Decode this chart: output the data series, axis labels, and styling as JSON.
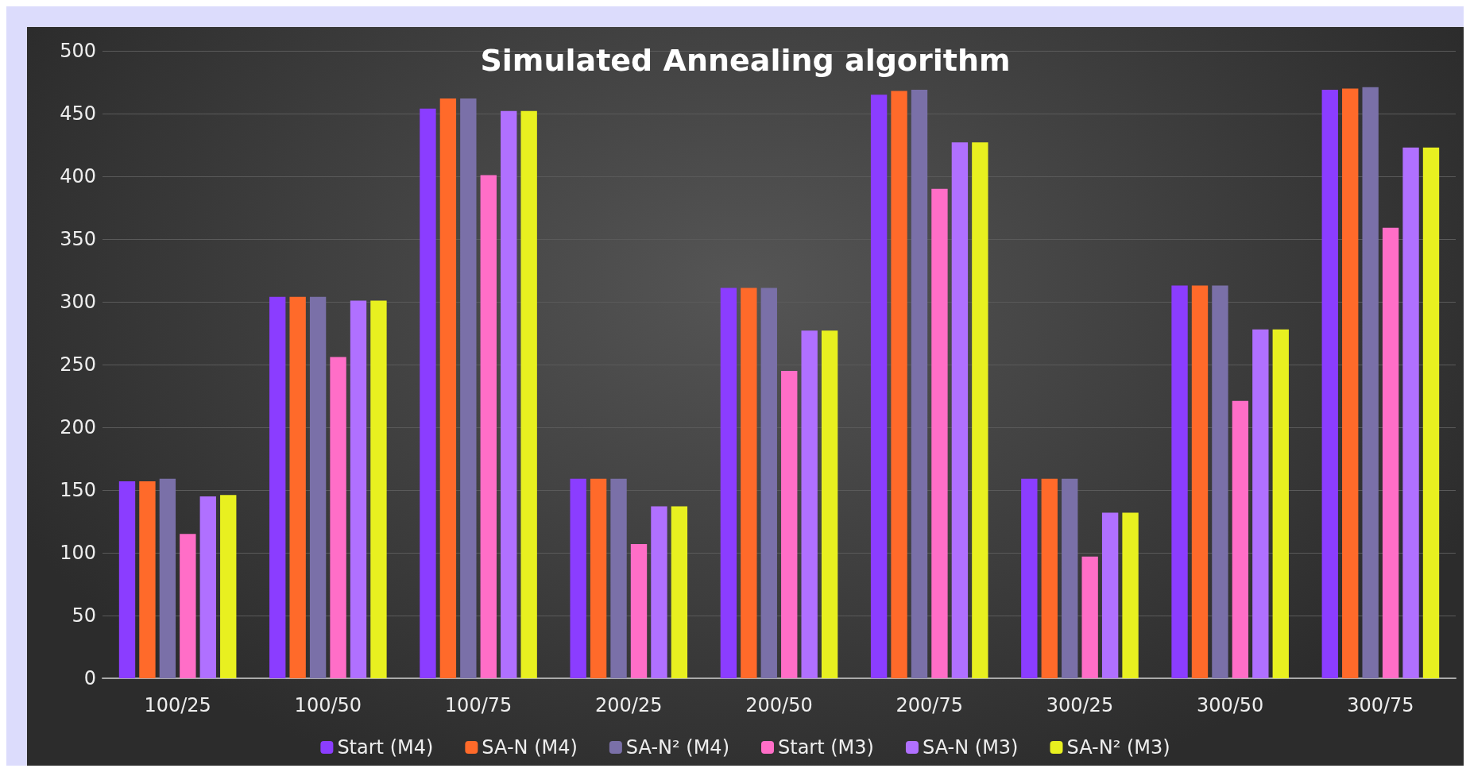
{
  "chart_data": {
    "type": "bar",
    "title": "Simulated Annealing algorithm",
    "categories": [
      "100/25",
      "100/50",
      "100/75",
      "200/25",
      "200/50",
      "200/75",
      "300/25",
      "300/50",
      "300/75"
    ],
    "series": [
      {
        "name": "Start (M4)",
        "color": "#8b3dff",
        "values": [
          157,
          304,
          454,
          159,
          311,
          465,
          159,
          313,
          469
        ]
      },
      {
        "name": "SA-N (M4)",
        "color": "#ff6a2a",
        "values": [
          157,
          304,
          462,
          159,
          311,
          468,
          159,
          313,
          470
        ]
      },
      {
        "name": "SA-N² (M4)",
        "color": "#7a70a8",
        "values": [
          159,
          304,
          462,
          159,
          311,
          469,
          159,
          313,
          471
        ]
      },
      {
        "name": "Start (M3)",
        "color": "#ff6ec7",
        "values": [
          115,
          256,
          401,
          107,
          245,
          390,
          97,
          221,
          359
        ]
      },
      {
        "name": "SA-N (M3)",
        "color": "#b070ff",
        "values": [
          145,
          301,
          452,
          137,
          277,
          427,
          132,
          278,
          423
        ]
      },
      {
        "name": "SA-N² (M3)",
        "color": "#e8f020",
        "values": [
          146,
          301,
          452,
          137,
          277,
          427,
          132,
          278,
          423
        ]
      }
    ],
    "ylim": [
      0,
      500
    ],
    "yticks": [
      0,
      50,
      100,
      150,
      200,
      250,
      300,
      350,
      400,
      450,
      500
    ],
    "grid": "y",
    "legend": "bottom"
  }
}
